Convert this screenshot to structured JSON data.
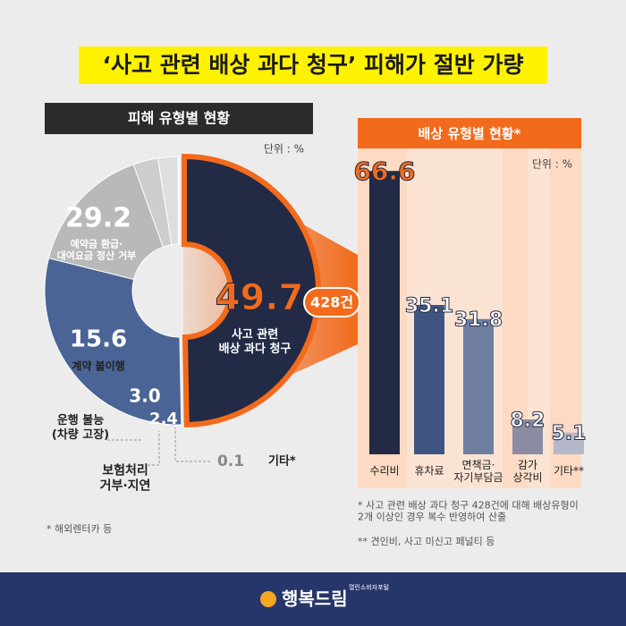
{
  "title": "‘사고 관련 배상 과다 청구’ 피해가 절반 가량",
  "logo": {
    "text": "행복드림",
    "subtitle": "열린소비자포털"
  },
  "chart_data": [
    {
      "type": "donut",
      "title": "피해 유형별 현황",
      "unit": "단위 : %",
      "categories": [
        "사고 관련\n배상 과다 청구",
        "예약금 환급·\n대여요금 정산 거부",
        "계약 불이행",
        "운행 불능\n(차량 고장)",
        "보험처리\n거부·지연",
        "기타*"
      ],
      "values": [
        49.7,
        29.2,
        15.6,
        3,
        2.4,
        0.1
      ],
      "value_labels": [
        "49.7",
        "29.2",
        "15.6",
        "3.0",
        "2.4",
        "0.1"
      ],
      "colors": [
        "#222a45",
        "#4a6496",
        "#b9b9b9",
        "#cdcdcd",
        "#dedede",
        "#f4f4f4"
      ],
      "annotation": "428건",
      "note": "* 해외렌터카 등"
    },
    {
      "type": "bar",
      "title": "배상 유형별 현황*",
      "unit": "단위 : %",
      "categories": [
        "수리비",
        "휴차료",
        "면책금·\n자기부담금",
        "감가\n상각비",
        "기타**"
      ],
      "values": [
        66.6,
        35.1,
        31.8,
        8.2,
        5.1
      ],
      "colors": [
        "#222a45",
        "#3d5580",
        "#6e7fa0",
        "#8b8ca2",
        "#b5b8c8"
      ],
      "ylim": [
        0,
        70
      ],
      "notes": [
        "* 사고 관련 배상 과다 청구 428건에 대해 배상유형이\n2개 이상인 경우 복수 반영하여 산출",
        "** 견인비, 사고 미신고 페널티 등"
      ]
    }
  ]
}
